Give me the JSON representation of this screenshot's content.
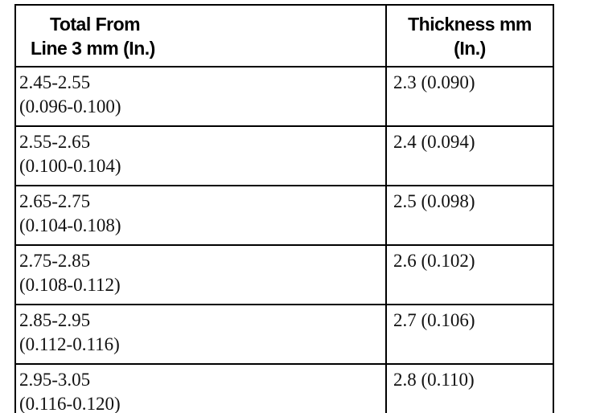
{
  "table": {
    "header": [
      [
        "Total From",
        "Line 3 mm (In.)"
      ],
      [
        "Thickness mm",
        "(In.)"
      ]
    ],
    "rows": [
      [
        [
          "2.45-2.55",
          "(0.096-0.100)"
        ],
        "2.3 (0.090)"
      ],
      [
        [
          "2.55-2.65",
          "(0.100-0.104)"
        ],
        "2.4 (0.094)"
      ],
      [
        [
          "2.65-2.75",
          "(0.104-0.108)"
        ],
        "2.5 (0.098)"
      ],
      [
        [
          "2.75-2.85",
          "(0.108-0.112)"
        ],
        "2.6 (0.102)"
      ],
      [
        [
          "2.85-2.95",
          "(0.112-0.116)"
        ],
        "2.7 (0.106)"
      ],
      [
        [
          "2.95-3.05",
          "(0.116-0.120)"
        ],
        "2.8 (0.110)"
      ]
    ]
  }
}
